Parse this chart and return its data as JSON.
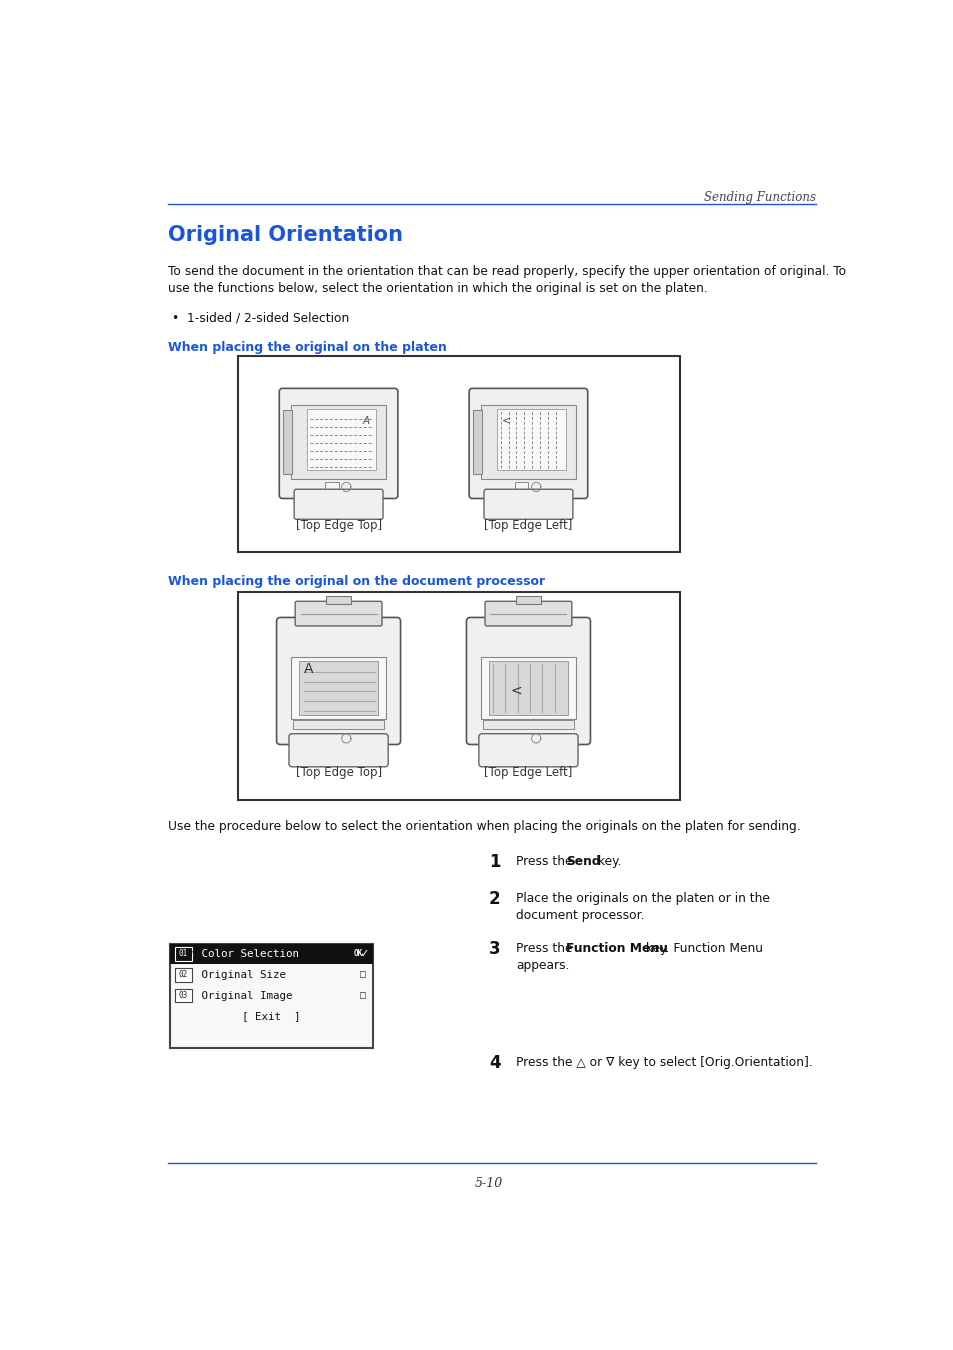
{
  "page_width": 9.54,
  "page_height": 13.5,
  "bg_color": "#ffffff",
  "header_text": "Sending Functions",
  "header_color": "#444444",
  "title": "Original Orientation",
  "title_color": "#1a56db",
  "body_text1a": "To send the document in the orientation that can be read properly, specify the upper orientation of original. To",
  "body_text1b": "use the functions below, select the orientation in which the original is set on the platen.",
  "bullet1": "•  1-sided / 2-sided Selection",
  "section1_title": "When placing the original on the platen",
  "section2_title": "When placing the original on the document processor",
  "section_title_color": "#1a56db",
  "label_top_top": "[Top Edge Top]",
  "label_top_left": "[Top Edge Left]",
  "body_text2": "Use the procedure below to select the orientation when placing the originals on the platen for sending.",
  "footer_line": "5-10",
  "line_color": "#1a56db"
}
